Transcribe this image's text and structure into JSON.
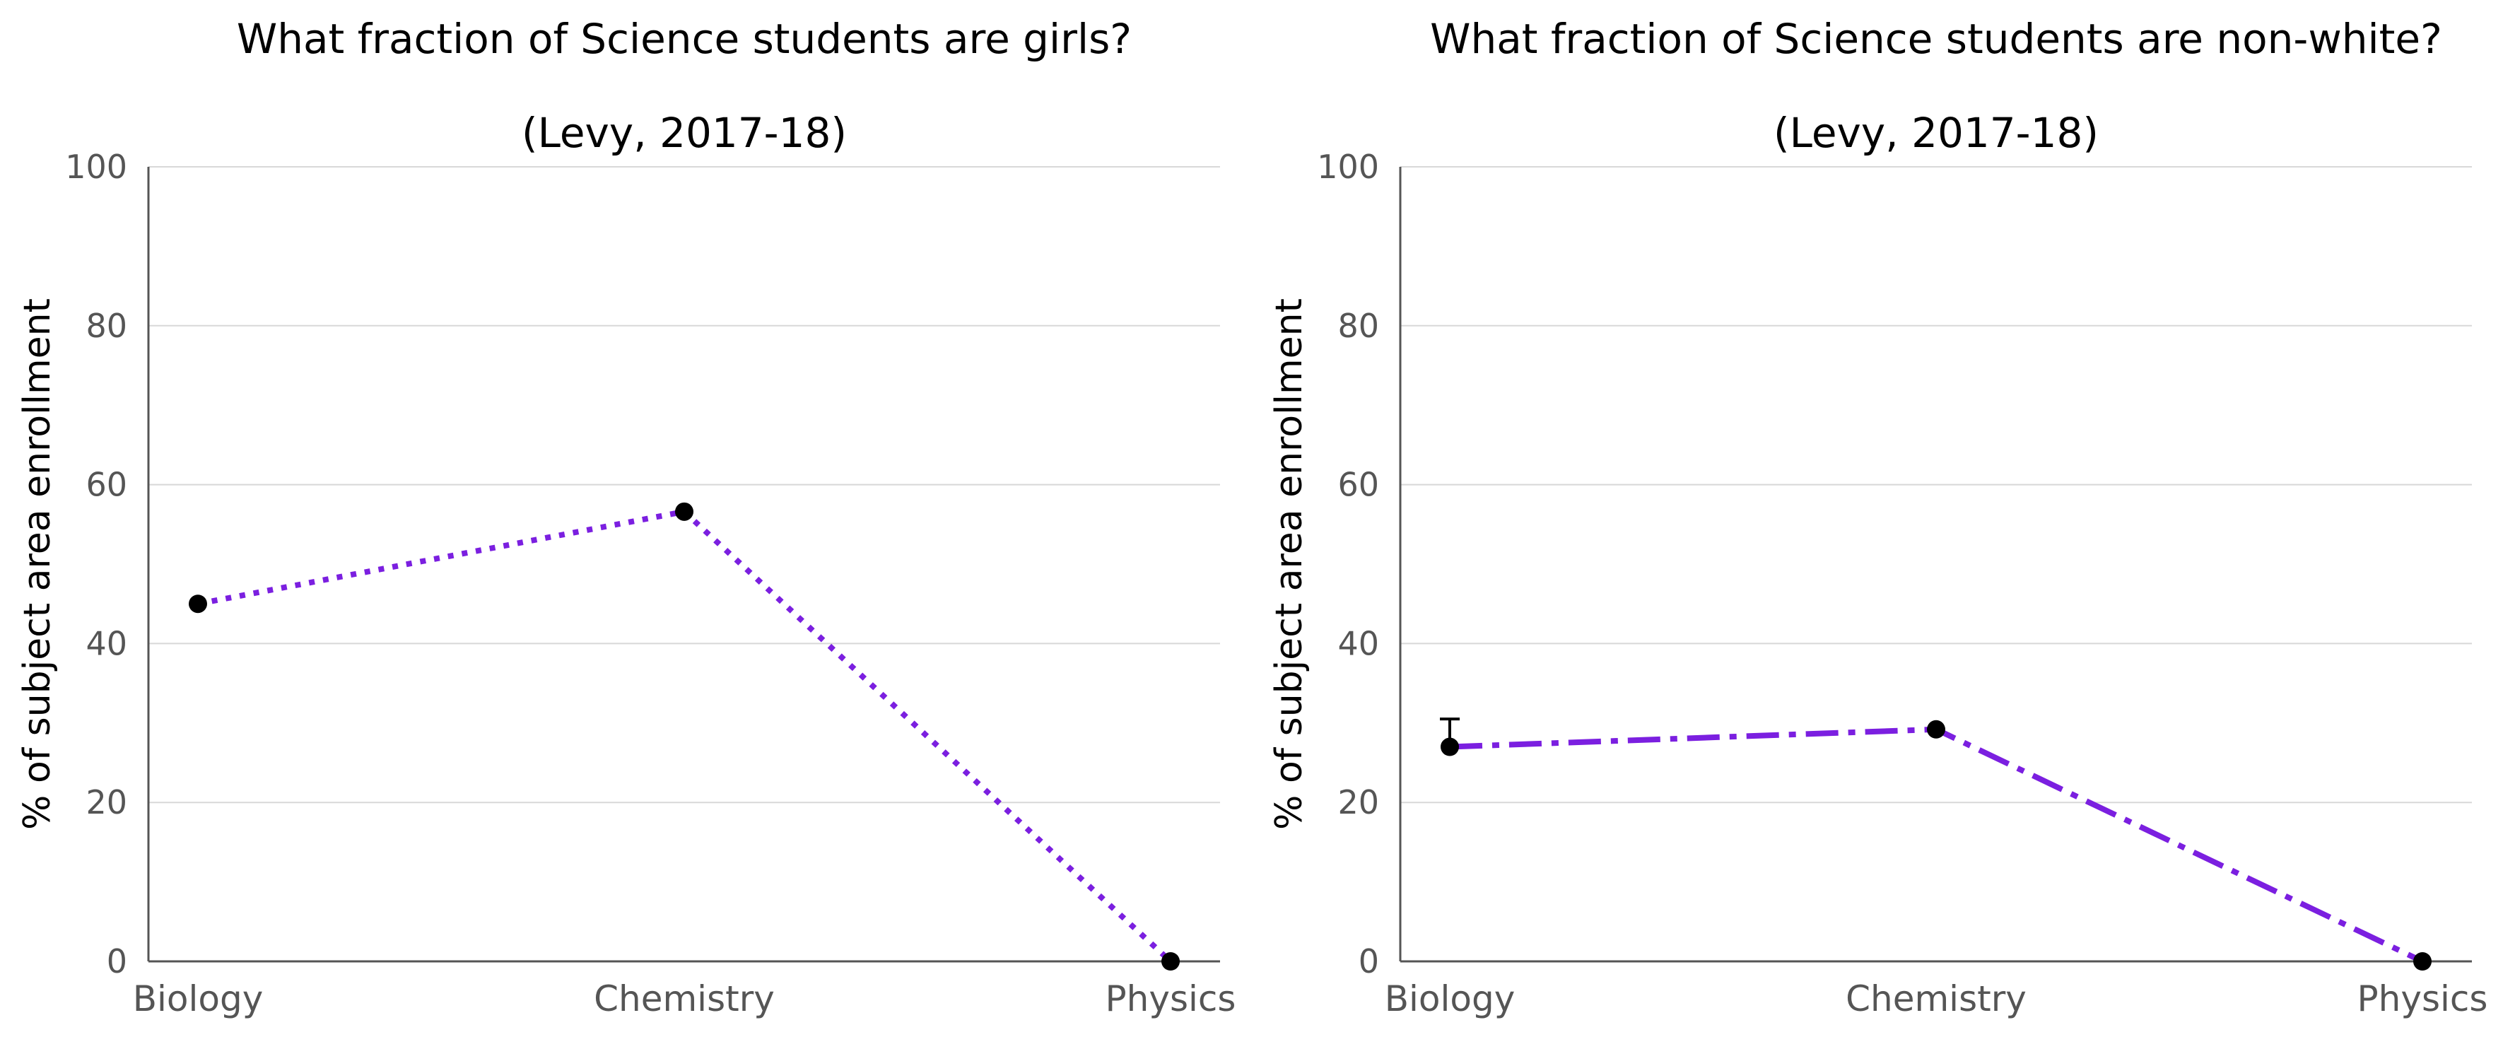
{
  "chart_data": [
    {
      "type": "line",
      "title": "What fraction of Science students are girls?",
      "subtitle": "(Levy, 2017-18)",
      "xlabel": "",
      "ylabel": "% of subject area enrollment",
      "categories": [
        "Biology",
        "Chemistry",
        "Physics"
      ],
      "series": [
        {
          "values": [
            45,
            56.6,
            0
          ],
          "color": "#7b1fe0",
          "line_style": "dotted",
          "marker_color": "#000000"
        }
      ],
      "ylim": [
        0,
        100
      ],
      "yticks": [
        0,
        20,
        40,
        60,
        80,
        100
      ],
      "ytick_labels": [
        "0",
        "20",
        "40",
        "60",
        "80",
        "100"
      ],
      "grid": "y",
      "error_bars": []
    },
    {
      "type": "line",
      "title": "What fraction of Science students are non-white?",
      "subtitle": "(Levy, 2017-18)",
      "xlabel": "",
      "ylabel": "% of subject area enrollment",
      "categories": [
        "Biology",
        "Chemistry",
        "Physics"
      ],
      "series": [
        {
          "values": [
            27,
            29.2,
            0
          ],
          "color": "#7b1fe0",
          "line_style": "dashdot",
          "marker_color": "#000000"
        }
      ],
      "ylim": [
        0,
        100
      ],
      "yticks": [
        0,
        20,
        40,
        60,
        80,
        100
      ],
      "ytick_labels": [
        "0",
        "20",
        "40",
        "60",
        "80",
        "100"
      ],
      "grid": "y",
      "error_bars": [
        {
          "category": "Biology",
          "upper": 30.5
        }
      ]
    }
  ]
}
